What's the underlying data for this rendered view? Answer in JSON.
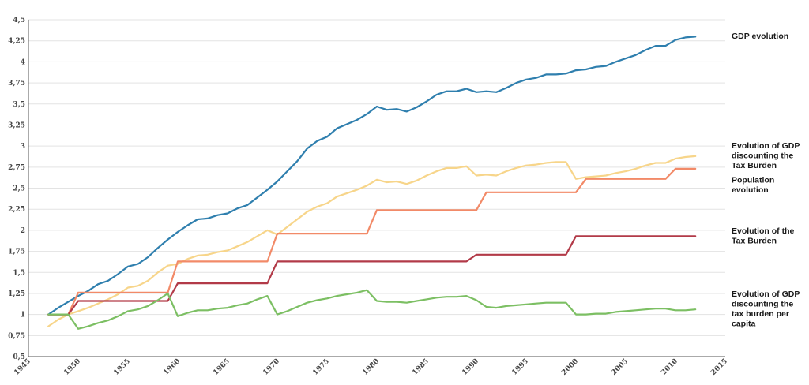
{
  "chart_data": {
    "type": "line",
    "title": "",
    "xlabel": "",
    "ylabel": "",
    "xlim": [
      1945,
      2015
    ],
    "ylim": [
      0.5,
      4.5
    ],
    "x_ticks": [
      "1945",
      "1950",
      "1955",
      "1960",
      "1965",
      "1970",
      "1975",
      "1980",
      "1985",
      "1990",
      "1995",
      "2000",
      "2005",
      "2010",
      "2015"
    ],
    "y_ticks": [
      "0,5",
      "0,75",
      "1",
      "1,25",
      "1,5",
      "1,75",
      "2",
      "2,25",
      "2,5",
      "2,75",
      "3",
      "3,25",
      "3,5",
      "3,75",
      "4",
      "4,25",
      "4,5"
    ],
    "grid": "horizontal",
    "legend_placement": "right, beside line ends",
    "series": [
      {
        "name": "GDP evolution",
        "color": "#2f7fae",
        "x": [
          1947,
          1948,
          1949,
          1950,
          1951,
          1952,
          1953,
          1954,
          1955,
          1956,
          1957,
          1958,
          1959,
          1960,
          1961,
          1962,
          1963,
          1964,
          1965,
          1966,
          1967,
          1968,
          1969,
          1970,
          1971,
          1972,
          1973,
          1974,
          1975,
          1976,
          1977,
          1978,
          1979,
          1980,
          1981,
          1982,
          1983,
          1984,
          1985,
          1986,
          1987,
          1988,
          1989,
          1990,
          1991,
          1992,
          1993,
          1994,
          1995,
          1996,
          1997,
          1998,
          1999,
          2000,
          2001,
          2002,
          2003,
          2004,
          2005,
          2006,
          2007,
          2008,
          2009,
          2010,
          2011,
          2012
        ],
        "y": [
          1.0,
          1.08,
          1.15,
          1.22,
          1.28,
          1.36,
          1.4,
          1.48,
          1.57,
          1.6,
          1.68,
          1.79,
          1.89,
          1.98,
          2.06,
          2.13,
          2.14,
          2.18,
          2.2,
          2.26,
          2.3,
          2.39,
          2.48,
          2.58,
          2.7,
          2.82,
          2.97,
          3.06,
          3.11,
          3.21,
          3.26,
          3.31,
          3.38,
          3.47,
          3.43,
          3.44,
          3.41,
          3.46,
          3.53,
          3.61,
          3.65,
          3.65,
          3.68,
          3.64,
          3.65,
          3.64,
          3.69,
          3.75,
          3.79,
          3.81,
          3.85,
          3.85,
          3.86,
          3.9,
          3.91,
          3.94,
          3.95,
          4.0,
          4.04,
          4.08,
          4.14,
          4.19,
          4.19,
          4.26,
          4.29,
          4.3
        ]
      },
      {
        "name": "Evolution of GDP discounting the Tax Burden",
        "color": "#f7d58a",
        "x": [
          1947,
          1948,
          1949,
          1950,
          1951,
          1952,
          1953,
          1954,
          1955,
          1956,
          1957,
          1958,
          1959,
          1960,
          1961,
          1962,
          1963,
          1964,
          1965,
          1966,
          1967,
          1968,
          1969,
          1970,
          1971,
          1972,
          1973,
          1974,
          1975,
          1976,
          1977,
          1978,
          1979,
          1980,
          1981,
          1982,
          1983,
          1984,
          1985,
          1986,
          1987,
          1988,
          1989,
          1990,
          1991,
          1992,
          1993,
          1994,
          1995,
          1996,
          1997,
          1998,
          1999,
          2000,
          2001,
          2002,
          2003,
          2004,
          2005,
          2006,
          2007,
          2008,
          2009,
          2010,
          2011,
          2012
        ],
        "y": [
          0.86,
          0.94,
          1.0,
          1.04,
          1.08,
          1.13,
          1.18,
          1.24,
          1.32,
          1.34,
          1.4,
          1.5,
          1.58,
          1.6,
          1.66,
          1.7,
          1.71,
          1.74,
          1.76,
          1.81,
          1.86,
          1.93,
          2.0,
          1.95,
          2.04,
          2.13,
          2.22,
          2.28,
          2.32,
          2.4,
          2.44,
          2.48,
          2.53,
          2.6,
          2.57,
          2.58,
          2.55,
          2.59,
          2.65,
          2.7,
          2.74,
          2.74,
          2.76,
          2.65,
          2.66,
          2.65,
          2.7,
          2.74,
          2.77,
          2.78,
          2.8,
          2.81,
          2.81,
          2.61,
          2.63,
          2.64,
          2.65,
          2.68,
          2.7,
          2.73,
          2.77,
          2.8,
          2.8,
          2.85,
          2.87,
          2.88
        ]
      },
      {
        "name": "Population evolution",
        "color": "#f28a68",
        "x": [
          1947,
          1949,
          1950,
          1959,
          1960,
          1969,
          1970,
          1979,
          1980,
          1990,
          1991,
          2000,
          2001,
          2009,
          2010,
          2012
        ],
        "y": [
          1.0,
          1.0,
          1.26,
          1.26,
          1.63,
          1.63,
          1.96,
          1.96,
          2.24,
          2.24,
          2.45,
          2.45,
          2.61,
          2.61,
          2.73,
          2.73
        ]
      },
      {
        "name": "Evolution of the Tax Burden",
        "color": "#b23a48",
        "x": [
          1947,
          1949,
          1950,
          1959,
          1960,
          1969,
          1970,
          1989,
          1990,
          1999,
          2000,
          2012
        ],
        "y": [
          1.0,
          1.0,
          1.16,
          1.16,
          1.37,
          1.37,
          1.63,
          1.63,
          1.71,
          1.71,
          1.93,
          1.93
        ]
      },
      {
        "name": "Evolution of GDP discounting the tax burden per capita",
        "color": "#7cbf63",
        "x": [
          1947,
          1948,
          1949,
          1950,
          1951,
          1952,
          1953,
          1954,
          1955,
          1956,
          1957,
          1958,
          1959,
          1960,
          1961,
          1962,
          1963,
          1964,
          1965,
          1966,
          1967,
          1968,
          1969,
          1970,
          1971,
          1972,
          1973,
          1974,
          1975,
          1976,
          1977,
          1978,
          1979,
          1980,
          1981,
          1982,
          1983,
          1984,
          1985,
          1986,
          1987,
          1988,
          1989,
          1990,
          1991,
          1992,
          1993,
          1994,
          1995,
          1996,
          1997,
          1998,
          1999,
          2000,
          2001,
          2002,
          2003,
          2004,
          2005,
          2006,
          2007,
          2008,
          2009,
          2010,
          2011,
          2012
        ],
        "y": [
          1.0,
          1.0,
          1.0,
          0.83,
          0.86,
          0.9,
          0.93,
          0.98,
          1.04,
          1.06,
          1.1,
          1.17,
          1.25,
          0.98,
          1.02,
          1.05,
          1.05,
          1.07,
          1.08,
          1.11,
          1.13,
          1.18,
          1.22,
          1.0,
          1.04,
          1.09,
          1.14,
          1.17,
          1.19,
          1.22,
          1.24,
          1.26,
          1.29,
          1.16,
          1.15,
          1.15,
          1.14,
          1.16,
          1.18,
          1.2,
          1.21,
          1.21,
          1.22,
          1.17,
          1.09,
          1.08,
          1.1,
          1.11,
          1.12,
          1.13,
          1.14,
          1.14,
          1.14,
          1.0,
          1.0,
          1.01,
          1.01,
          1.03,
          1.04,
          1.05,
          1.06,
          1.07,
          1.07,
          1.05,
          1.05,
          1.06
        ]
      }
    ]
  }
}
